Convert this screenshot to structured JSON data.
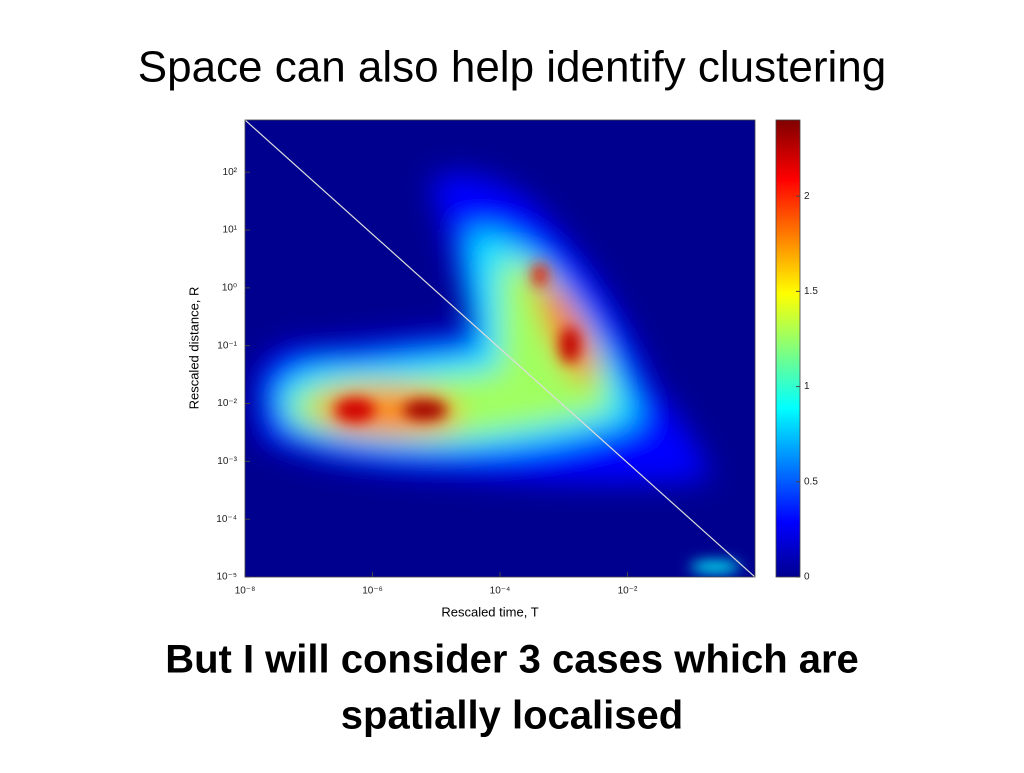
{
  "chart_data": {
    "type": "heatmap",
    "title": "Space can also help identify clustering",
    "xlabel": "Rescaled time, T",
    "ylabel": "Rescaled distance, R",
    "xscale": "log",
    "yscale": "log",
    "xlim": [
      1e-08,
      1
    ],
    "xticks": [
      {
        "value": 1e-08,
        "label": "10⁻⁸"
      },
      {
        "value": 1e-06,
        "label": "10⁻⁶"
      },
      {
        "value": 0.0001,
        "label": "10⁻⁴"
      },
      {
        "value": 0.01,
        "label": "10⁻²"
      }
    ],
    "ylim": [
      1e-05,
      800
    ],
    "yticks": [
      {
        "value": 100,
        "label": "10²"
      },
      {
        "value": 10,
        "label": "10¹"
      },
      {
        "value": 1,
        "label": "10⁰"
      },
      {
        "value": 0.1,
        "label": "10⁻¹"
      },
      {
        "value": 0.01,
        "label": "10⁻²"
      },
      {
        "value": 0.001,
        "label": "10⁻³"
      },
      {
        "value": 0.0001,
        "label": "10⁻⁴"
      },
      {
        "value": 1e-05,
        "label": "10⁻⁵"
      }
    ],
    "clim": [
      0,
      2.4
    ],
    "cticks": [
      0,
      0.5,
      1,
      1.5,
      2
    ],
    "caption": [
      "But I will consider 3 cases which are",
      "spatially localised"
    ]
  }
}
